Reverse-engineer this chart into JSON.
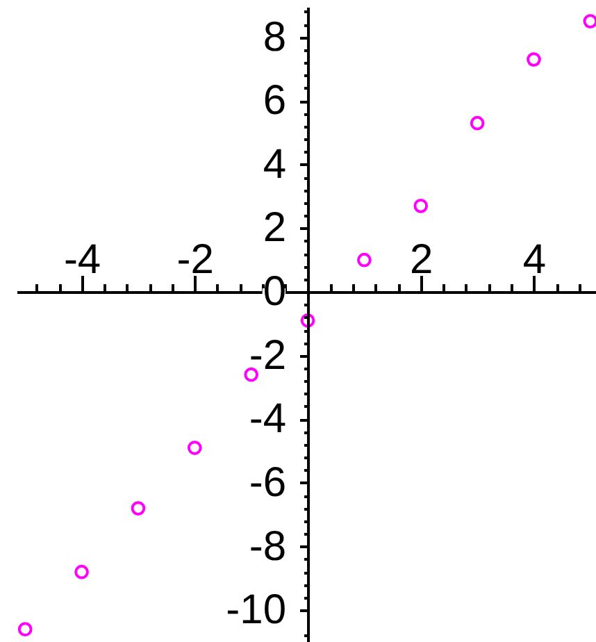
{
  "chart_data": {
    "type": "scatter",
    "x": [
      -5,
      -4,
      -3,
      -2,
      -1,
      0,
      1,
      2,
      3,
      4,
      5
    ],
    "values": [
      -10.6,
      -8.8,
      -6.8,
      -4.9,
      -2.6,
      -0.9,
      1.0,
      2.7,
      5.3,
      7.3,
      8.5
    ],
    "color": "#ff00ff",
    "marker": "circle",
    "xlim": [
      -5.15,
      5.1
    ],
    "ylim": [
      -11,
      8.95
    ],
    "xticks": [
      {
        "value": -4.8,
        "label": null
      },
      {
        "value": -4.4,
        "label": null
      },
      -4,
      {
        "value": -3.6,
        "label": null
      },
      {
        "value": -3.2,
        "label": null
      },
      {
        "value": -2.8,
        "label": null
      },
      {
        "value": -2.4,
        "label": null
      },
      -2,
      {
        "value": -1.6,
        "label": null
      },
      {
        "value": -1.2,
        "label": null
      },
      {
        "value": -0.8,
        "label": null
      },
      {
        "value": -0.4,
        "label": null
      },
      {
        "value": 0.4,
        "label": null
      },
      {
        "value": 0.8,
        "label": null
      },
      {
        "value": 1.2,
        "label": null
      },
      {
        "value": 1.6,
        "label": null
      },
      2,
      {
        "value": 2.4,
        "label": null
      },
      {
        "value": 2.8,
        "label": null
      },
      {
        "value": 3.2,
        "label": null
      },
      {
        "value": 3.6,
        "label": null
      },
      4,
      {
        "value": 4.4,
        "label": null
      },
      {
        "value": 4.8,
        "label": null
      }
    ],
    "yticks": [
      {
        "value": -10.8,
        "label": null
      },
      -10,
      {
        "value": -9.6,
        "label": null
      },
      {
        "value": -9.2,
        "label": null
      },
      {
        "value": -8.8,
        "label": null
      },
      {
        "value": -8.4,
        "label": null
      },
      -8,
      {
        "value": -7.6,
        "label": null
      },
      {
        "value": -7.2,
        "label": null
      },
      {
        "value": -6.8,
        "label": null
      },
      {
        "value": -6.4,
        "label": null
      },
      -6,
      {
        "value": -5.6,
        "label": null
      },
      {
        "value": -5.2,
        "label": null
      },
      {
        "value": -4.8,
        "label": null
      },
      {
        "value": -4.4,
        "label": null
      },
      -4,
      {
        "value": -3.6,
        "label": null
      },
      {
        "value": -3.2,
        "label": null
      },
      {
        "value": -2.8,
        "label": null
      },
      {
        "value": -2.4,
        "label": null
      },
      -2,
      {
        "value": -1.6,
        "label": null
      },
      {
        "value": -1.2,
        "label": null
      },
      {
        "value": -0.8,
        "label": null
      },
      {
        "value": -0.4,
        "label": null
      },
      0,
      {
        "value": 0.4,
        "label": null
      },
      {
        "value": 0.8,
        "label": null
      },
      {
        "value": 1.2,
        "label": null
      },
      {
        "value": 1.6,
        "label": null
      },
      2,
      {
        "value": 2.4,
        "label": null
      },
      {
        "value": 2.8,
        "label": null
      },
      {
        "value": 3.2,
        "label": null
      },
      {
        "value": 3.6,
        "label": null
      },
      4,
      {
        "value": 4.4,
        "label": null
      },
      {
        "value": 4.8,
        "label": null
      },
      {
        "value": 5.2,
        "label": null
      },
      {
        "value": 5.6,
        "label": null
      },
      6,
      {
        "value": 6.4,
        "label": null
      },
      {
        "value": 6.8,
        "label": null
      },
      {
        "value": 7.2,
        "label": null
      },
      {
        "value": 7.6,
        "label": null
      },
      8,
      {
        "value": 8.4,
        "label": null
      },
      {
        "value": 8.8,
        "label": null
      }
    ]
  }
}
